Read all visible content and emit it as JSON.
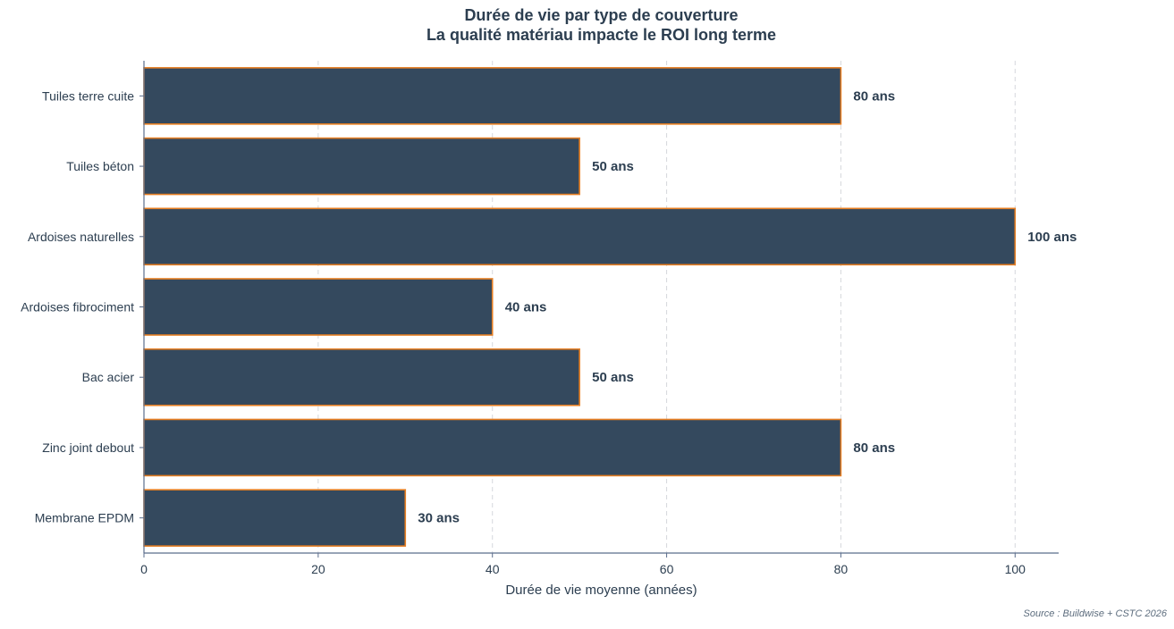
{
  "chart_data": {
    "type": "bar",
    "orientation": "horizontal",
    "title": "Durée de vie par type de couverture",
    "subtitle": "La qualité matériau impacte le ROI long terme",
    "xlabel": "Durée de vie moyenne (années)",
    "ylabel": "",
    "xlim": [
      0,
      105
    ],
    "xticks": [
      0,
      20,
      40,
      60,
      80,
      100
    ],
    "grid": "x-dashed",
    "categories": [
      "Tuiles terre cuite",
      "Tuiles béton",
      "Ardoises naturelles",
      "Ardoises fibrociment",
      "Bac acier",
      "Zinc joint debout",
      "Membrane EPDM"
    ],
    "values": [
      80,
      50,
      100,
      40,
      50,
      80,
      30
    ],
    "data_labels": [
      "80 ans",
      "50 ans",
      "100 ans",
      "40 ans",
      "50 ans",
      "80 ans",
      "30 ans"
    ],
    "colors": {
      "bar_fill": "#34495e",
      "bar_edge": "#e67e22",
      "text": "#2c3e50",
      "axis": "#5b6d8c",
      "grid": "#d5d8dc"
    }
  },
  "source": "Source : Buildwise + CSTC 2026"
}
